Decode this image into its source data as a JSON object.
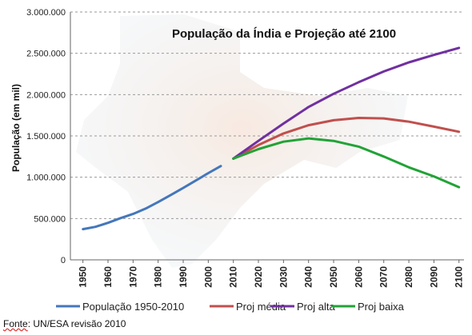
{
  "chart_data": {
    "type": "line",
    "title": "População da Índia e Projeção até 2100",
    "ylabel": "População (em mil)",
    "xlabel": "",
    "xlim": [
      1945,
      2102
    ],
    "ylim": [
      0,
      3000000
    ],
    "yticks": [
      "0",
      "500.000",
      "1.000.000",
      "1.500.000",
      "2.000.000",
      "2.500.000",
      "3.000.000"
    ],
    "ytick_values": [
      0,
      500000,
      1000000,
      1500000,
      2000000,
      2500000,
      3000000
    ],
    "xticks": [
      1950,
      1960,
      1970,
      1980,
      1990,
      2000,
      2010,
      2020,
      2030,
      2040,
      2050,
      2060,
      2070,
      2080,
      2090,
      2100
    ],
    "grid": "horizontal dashed",
    "legend_position": "bottom",
    "series": [
      {
        "name": "População 1950-2010",
        "color": "#4477bb",
        "x": [
          1950,
          1955,
          1960,
          1965,
          1970,
          1975,
          1980,
          1985,
          1990,
          1995,
          2000,
          2005
        ],
        "y": [
          372000,
          400000,
          448000,
          505000,
          555000,
          620000,
          700000,
          785000,
          870000,
          960000,
          1050000,
          1135000
        ]
      },
      {
        "name": "Proj média",
        "color": "#c0504d",
        "x": [
          2010,
          2020,
          2030,
          2040,
          2050,
          2060,
          2070,
          2080,
          2090,
          2100
        ],
        "y": [
          1225000,
          1390000,
          1530000,
          1630000,
          1690000,
          1718000,
          1712000,
          1672000,
          1612000,
          1550000
        ]
      },
      {
        "name": "Proj alta",
        "color": "#7030a0",
        "x": [
          2010,
          2020,
          2030,
          2040,
          2050,
          2060,
          2070,
          2080,
          2090,
          2100
        ],
        "y": [
          1225000,
          1440000,
          1650000,
          1850000,
          2010000,
          2150000,
          2280000,
          2390000,
          2480000,
          2565000
        ]
      },
      {
        "name": "Proj baixa",
        "color": "#21a336",
        "x": [
          2010,
          2020,
          2030,
          2040,
          2050,
          2060,
          2070,
          2080,
          2090,
          2100
        ],
        "y": [
          1225000,
          1340000,
          1430000,
          1470000,
          1440000,
          1370000,
          1250000,
          1120000,
          1010000,
          880000
        ]
      }
    ]
  },
  "source_prefix": "Fonte",
  "source_rest": ": UN/ESA revisão 2010"
}
